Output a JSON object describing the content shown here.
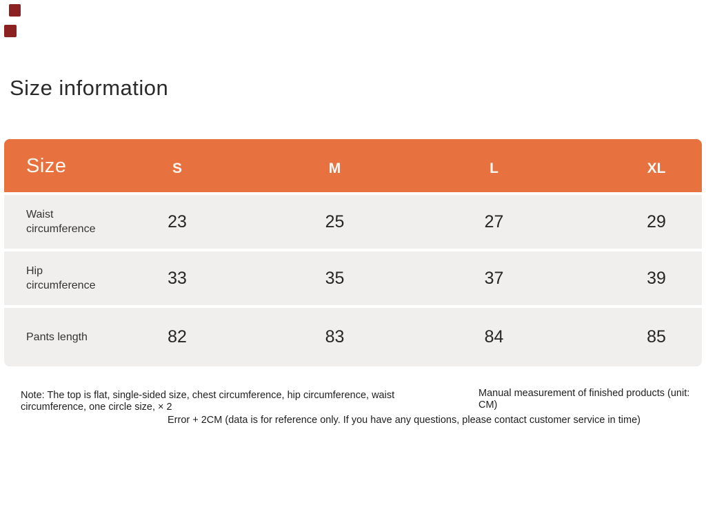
{
  "title": "Size information",
  "corner_marks": {
    "color": "#8b2120"
  },
  "table": {
    "size_label": "Size",
    "columns": [
      "S",
      "M",
      "L",
      "XL"
    ],
    "rows": [
      {
        "label": "Waist circumference",
        "values": [
          "23",
          "25",
          "27",
          "29"
        ]
      },
      {
        "label": "Hip circumference",
        "values": [
          "33",
          "35",
          "37",
          "39"
        ]
      },
      {
        "label": "Pants length",
        "values": [
          "82",
          "83",
          "84",
          "85"
        ]
      }
    ],
    "colors": {
      "header_bg": "#e7713f",
      "header_text": "#fdf7f2",
      "row_bg": "#f0efee",
      "value_text": "#262626"
    }
  },
  "notes": {
    "left": "Note: The top is flat, single-sided size, chest circumference, hip circumference, waist circumference, one circle size, × 2",
    "right": "Manual measurement of finished products (unit: CM)",
    "bottom": "Error + 2CM (data is for reference only. If you have any questions, please contact customer service in time)"
  },
  "chart_data": {
    "type": "table",
    "title": "Size information",
    "columns": [
      "Size",
      "S",
      "M",
      "L",
      "XL"
    ],
    "rows": [
      [
        "Waist circumference",
        23,
        25,
        27,
        29
      ],
      [
        "Hip circumference",
        33,
        35,
        37,
        39
      ],
      [
        "Pants length",
        82,
        83,
        84,
        85
      ]
    ],
    "notes": [
      "Note: The top is flat, single-sided size, chest circumference, hip circumference, waist circumference, one circle size, × 2",
      "Manual measurement of finished products (unit: CM)",
      "Error + 2CM (data is for reference only. If you have any questions, please contact customer service in time)"
    ]
  }
}
